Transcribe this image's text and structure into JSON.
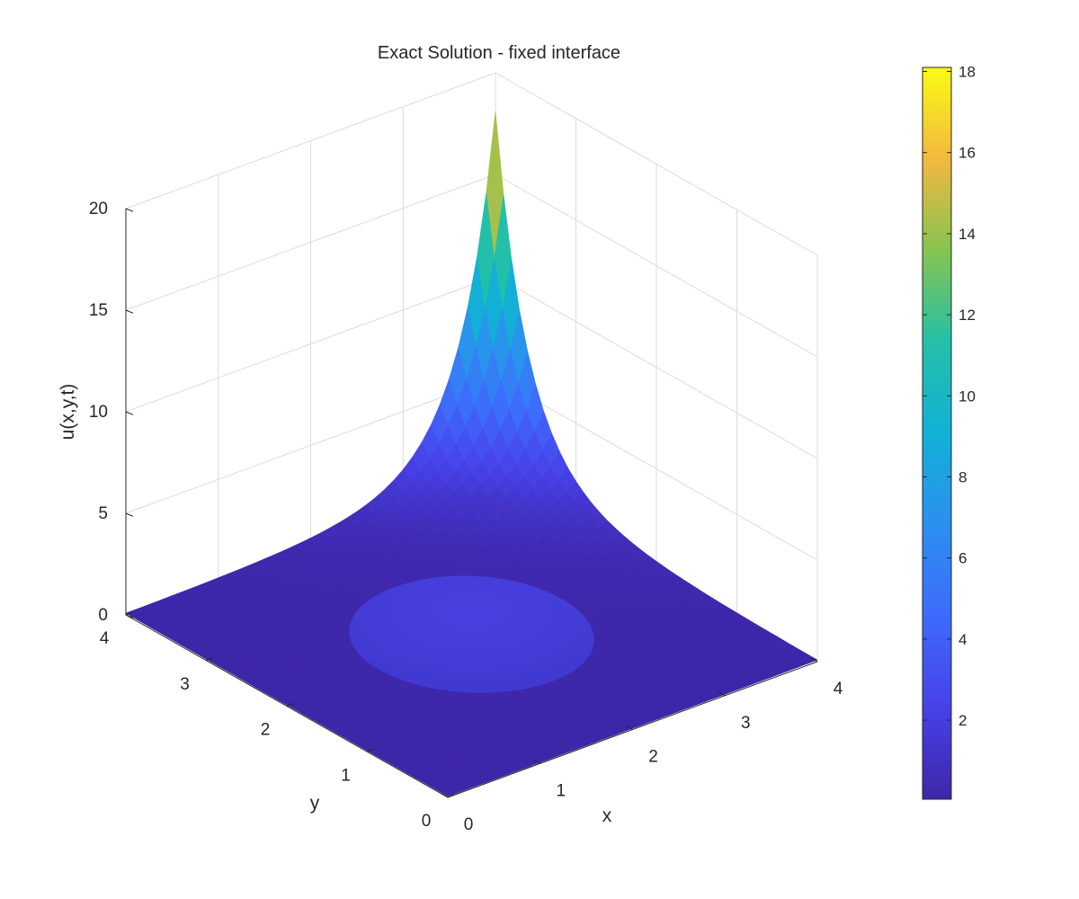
{
  "chart_data": {
    "type": "surface",
    "title": "Exact Solution - fixed interface",
    "xlabel": "x",
    "ylabel": "y",
    "zlabel": "u(x,y,t)",
    "x_range": [
      0,
      4
    ],
    "y_range": [
      0,
      4
    ],
    "z_range": [
      0,
      20
    ],
    "x_ticks": [
      "0",
      "1",
      "2",
      "3",
      "4"
    ],
    "y_ticks": [
      "0",
      "1",
      "2",
      "3",
      "4"
    ],
    "z_ticks": [
      "0",
      "5",
      "10",
      "15",
      "20"
    ],
    "grid": true,
    "colormap": "parula",
    "interface": {
      "shape": "circle",
      "center": [
        2,
        2
      ],
      "radius": 1
    },
    "surface_samples": [
      {
        "x": 0,
        "y": 0,
        "u": 0.05
      },
      {
        "x": 4,
        "y": 0,
        "u": 0.6
      },
      {
        "x": 0,
        "y": 4,
        "u": 0.6
      },
      {
        "x": 2,
        "y": 2,
        "u": 1.2
      },
      {
        "x": 3,
        "y": 3,
        "u": 3.5
      },
      {
        "x": 4,
        "y": 4,
        "u": 18.1
      }
    ],
    "colorbar": {
      "min": 0.05,
      "max": 18.1,
      "ticks": [
        "2",
        "4",
        "6",
        "8",
        "10",
        "12",
        "14",
        "16",
        "18"
      ],
      "tick_values": [
        2,
        4,
        6,
        8,
        10,
        12,
        14,
        16,
        18
      ]
    }
  }
}
